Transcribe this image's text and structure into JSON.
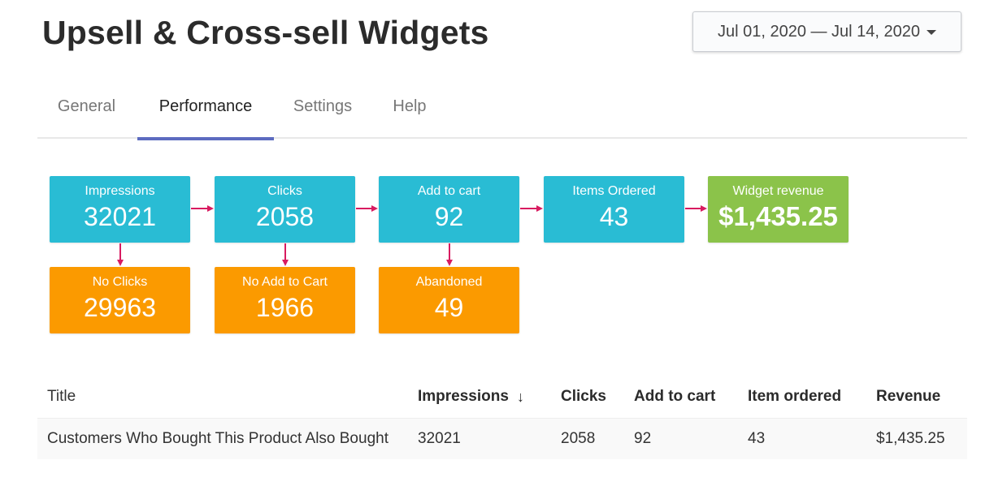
{
  "header": {
    "title": "Upsell & Cross-sell Widgets",
    "date_range": "Jul 01, 2020 — Jul 14, 2020"
  },
  "tabs": [
    {
      "label": "General",
      "active": false
    },
    {
      "label": "Performance",
      "active": true
    },
    {
      "label": "Settings",
      "active": false
    },
    {
      "label": "Help",
      "active": false
    }
  ],
  "funnel": {
    "impressions": {
      "label": "Impressions",
      "value": "32021"
    },
    "clicks": {
      "label": "Clicks",
      "value": "2058"
    },
    "add_to_cart": {
      "label": "Add to cart",
      "value": "92"
    },
    "items_ordered": {
      "label": "Items Ordered",
      "value": "43"
    },
    "widget_revenue": {
      "label": "Widget revenue",
      "value": "$1,435.25"
    },
    "no_clicks": {
      "label": "No Clicks",
      "value": "29963"
    },
    "no_add_to_cart": {
      "label": "No Add to Cart",
      "value": "1966"
    },
    "abandoned": {
      "label": "Abandoned",
      "value": "49"
    }
  },
  "table": {
    "columns": {
      "title": "Title",
      "impressions": "Impressions",
      "sort_indicator": "↓",
      "clicks": "Clicks",
      "add_to_cart": "Add to cart",
      "item_ordered": "Item ordered",
      "revenue": "Revenue"
    },
    "rows": [
      {
        "title": "Customers Who Bought This Product Also Bought",
        "impressions": "32021",
        "clicks": "2058",
        "add_to_cart": "92",
        "item_ordered": "43",
        "revenue": "$1,435.25"
      }
    ]
  },
  "colors": {
    "funnel_stage": "#29bcd4",
    "drop_off": "#fb9a00",
    "revenue": "#8bc34a",
    "arrow": "#d81b60",
    "active_tab_indicator": "#5c6bc0"
  }
}
